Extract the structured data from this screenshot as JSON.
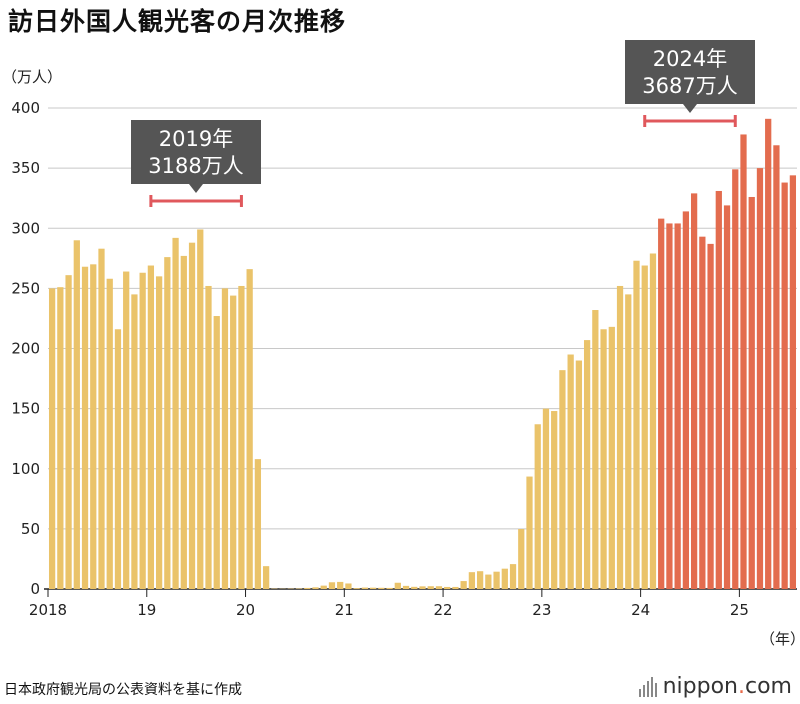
{
  "title": "訪日外国人観光客の月次推移",
  "source": "日本政府観光局の公表資料を基に作成",
  "brand": {
    "name_main": "nippon",
    "name_dot": ".",
    "name_tld": "com"
  },
  "colors": {
    "normal": "#eac36a",
    "highlight": "#e36c4e",
    "grid": "#c8c8c8",
    "callout_bg": "#555555",
    "callout_text": "#ffffff",
    "bracket": "#e0585c"
  },
  "chart_data": {
    "type": "bar",
    "title": "訪日外国人観光客の月次推移",
    "ylabel": "（万人）",
    "xlabel": "（年）",
    "ylim": [
      0,
      400
    ],
    "yticks": [
      0,
      50,
      100,
      150,
      200,
      250,
      300,
      350,
      400
    ],
    "xtick_labels": [
      {
        "label": "2018",
        "index": 0
      },
      {
        "label": "19",
        "index": 12
      },
      {
        "label": "20",
        "index": 24
      },
      {
        "label": "21",
        "index": 36
      },
      {
        "label": "22",
        "index": 48
      },
      {
        "label": "23",
        "index": 60
      },
      {
        "label": "24",
        "index": 72
      },
      {
        "label": "25",
        "index": 84
      }
    ],
    "highlight_start_index": 74,
    "values": [
      250,
      251,
      261,
      290,
      268,
      270,
      283,
      258,
      216,
      264,
      245,
      263,
      269,
      260,
      276,
      292,
      277,
      288,
      299,
      252,
      227,
      250,
      244,
      252,
      266,
      108,
      19,
      0.3,
      0.2,
      0.3,
      0.4,
      0.9,
      1.4,
      2.8,
      5.6,
      5.9,
      4.6,
      0.7,
      1.2,
      1.1,
      1.0,
      0.9,
      5.2,
      2.6,
      1.8,
      2.2,
      2.3,
      2.3,
      1.7,
      1.7,
      6.6,
      14.0,
      14.8,
      12.0,
      14.4,
      16.9,
      20.7,
      49.9,
      93.5,
      137,
      150,
      148,
      182,
      195,
      190,
      207,
      232,
      216,
      218,
      252,
      245,
      273,
      269,
      279,
      308,
      304,
      304,
      314,
      329,
      293,
      287,
      331,
      319,
      349,
      378,
      326,
      350,
      391,
      369,
      338,
      344
    ],
    "annotations": [
      {
        "line1": "2019年",
        "line2": "3188万人",
        "start_index": 12,
        "end_index": 23
      },
      {
        "line1": "2024年",
        "line2": "3687万人",
        "start_index": 72,
        "end_index": 83
      }
    ]
  }
}
